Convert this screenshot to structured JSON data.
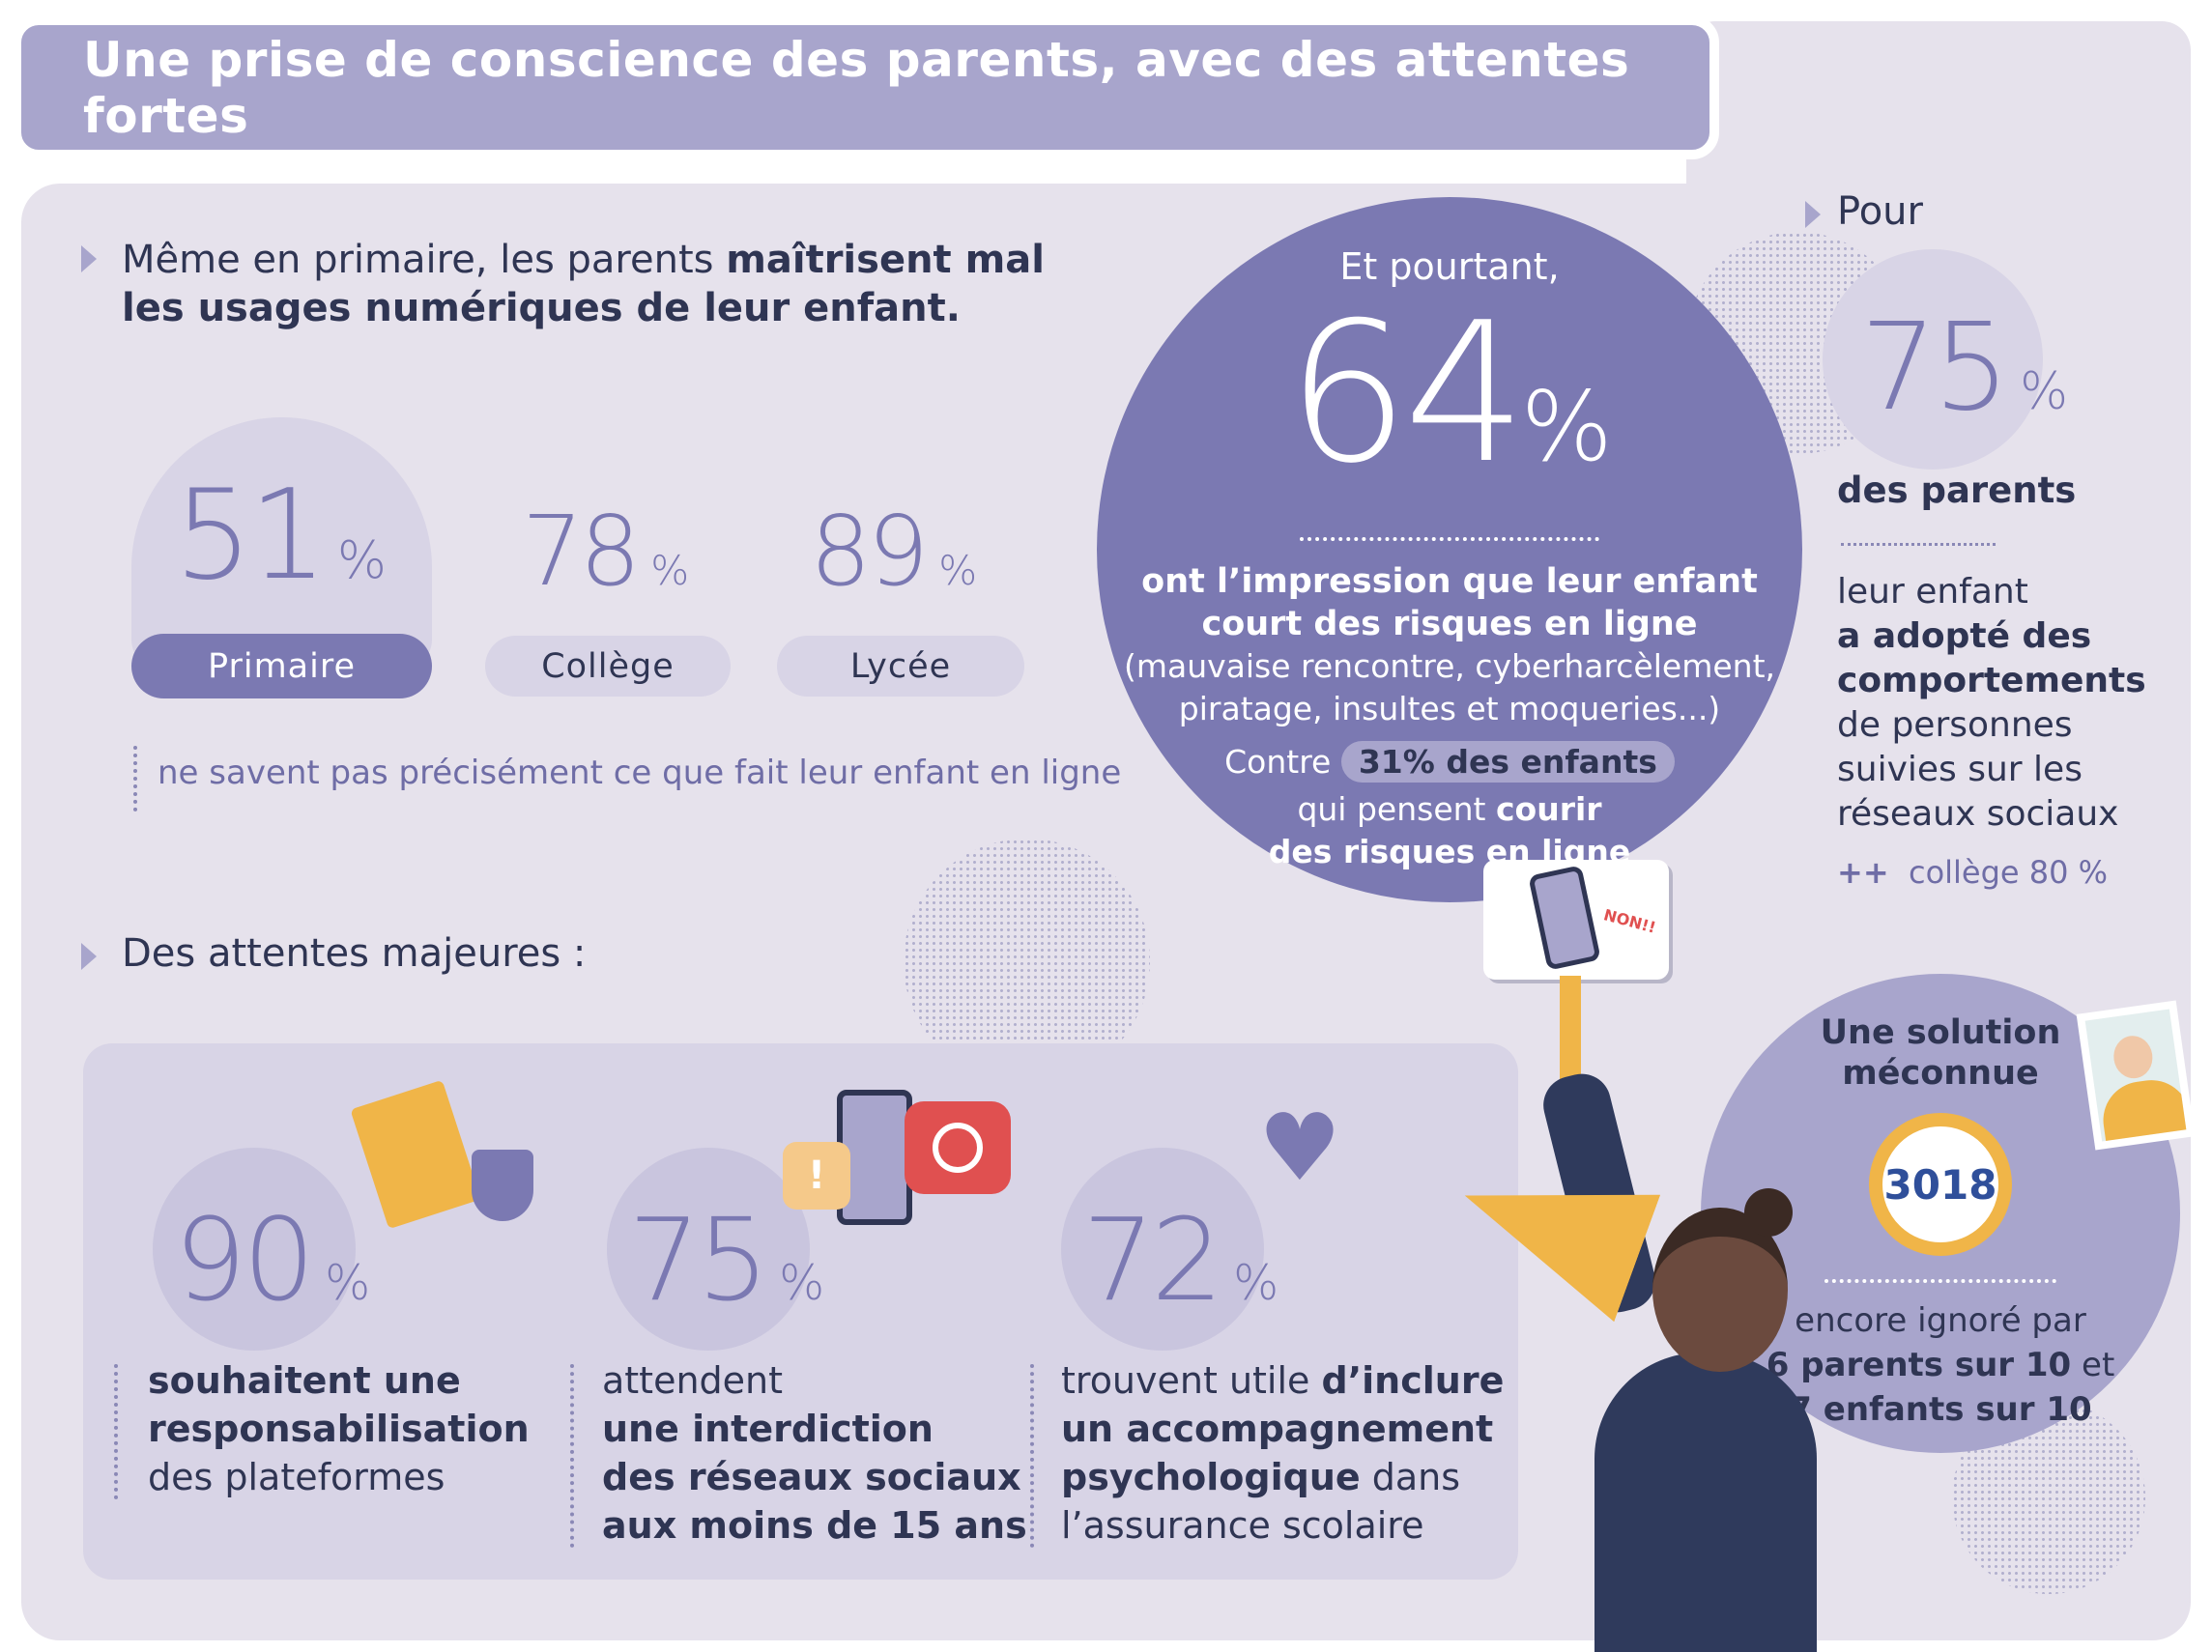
{
  "title": "Une prise de conscience des parents, avec des attentes fortes",
  "section1": {
    "heading_normal": "Même en primaire, les parents ",
    "heading_bold1": "maîtrisent mal",
    "heading_bold2": "les usages numériques de leur enfant.",
    "stats": [
      {
        "value": "51",
        "unit": "%",
        "label": "Primaire"
      },
      {
        "value": "78",
        "unit": "%",
        "label": "Collège"
      },
      {
        "value": "89",
        "unit": "%",
        "label": "Lycée"
      }
    ],
    "note": "ne savent pas précisément ce que fait leur enfant en ligne"
  },
  "big_circle": {
    "intro": "Et pourtant,",
    "value": "64",
    "unit": "%",
    "line1": "ont l’impression que leur enfant",
    "line2": "court des risques en ligne",
    "line3": "(mauvaise rencontre, cyberharcèlement,",
    "line4": "piratage, insultes et moqueries...)",
    "contre": "Contre",
    "badge": "31% des enfants",
    "line5_normal": "qui pensent ",
    "line5_bold": "courir",
    "line6": "des risques en ligne"
  },
  "pour": {
    "heading": "Pour",
    "value": "75",
    "unit": "%",
    "subject": "des parents",
    "line1": "leur enfant",
    "line2": "a adopté des",
    "line3": "comportements",
    "line4": "de personnes",
    "line5": "suivies sur les",
    "line6": "réseaux sociaux",
    "plus": "++",
    "extra": "collège 80 %"
  },
  "solution": {
    "title1": "Une solution",
    "title2": "méconnue",
    "number": "3018",
    "line1": "encore ignoré par",
    "line2_bold": "6 parents sur 10",
    "line2_normal": " et",
    "line3": "7 enfants sur 10"
  },
  "section2": {
    "heading": "Des attentes majeures :",
    "stats": [
      {
        "value": "90",
        "unit": "%",
        "lines": [
          {
            "t": "souhaitent une",
            "b": true
          },
          {
            "t": "responsabilisation",
            "b": true
          },
          {
            "t": "des plateformes",
            "b": false
          }
        ]
      },
      {
        "value": "75",
        "unit": "%",
        "lines": [
          {
            "t": "attendent",
            "b": false
          },
          {
            "t": "une interdiction",
            "b": true
          },
          {
            "t": "des réseaux sociaux",
            "b": true
          },
          {
            "t": "aux moins de 15 ans",
            "b": true
          }
        ]
      },
      {
        "value": "72",
        "unit": "%",
        "lines": [
          {
            "t": "trouvent utile ",
            "b": false,
            "t2": "d’inclure"
          },
          {
            "t": "un accompagnement",
            "b": true
          },
          {
            "t": "psychologique",
            "b": true,
            "t2n": " dans"
          },
          {
            "t": "l’assurance scolaire",
            "b": false
          }
        ]
      }
    ]
  },
  "sign_text": "NON!!",
  "colors": {
    "purple_dark": "#7b79b2",
    "purple_light": "#a8a5cc",
    "panel": "#e6e2ec",
    "navy": "#2f3553",
    "yellow": "#f0b548",
    "red": "#e05050"
  }
}
